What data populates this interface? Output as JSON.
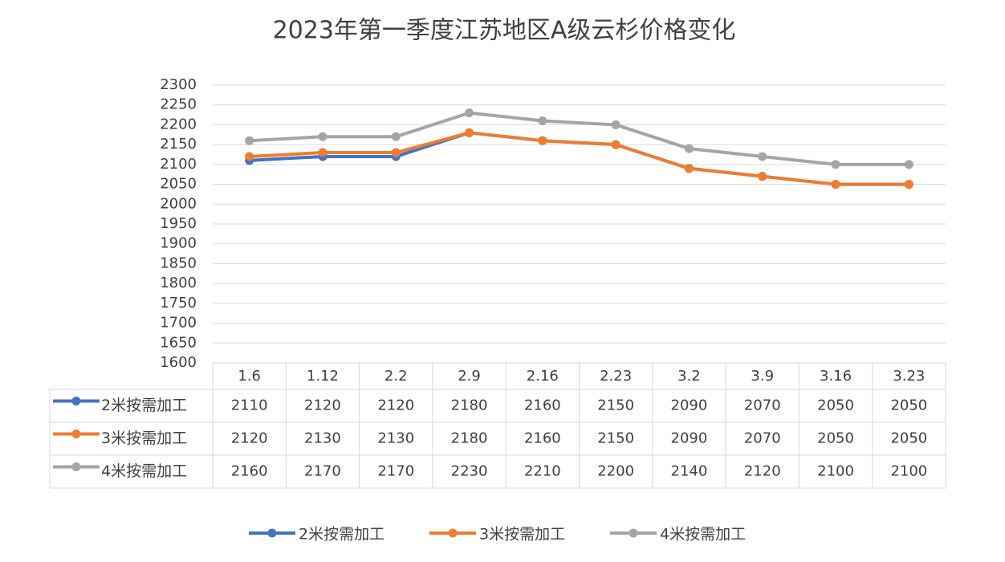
{
  "chart_data": {
    "type": "line",
    "title": "2023年第一季度江苏地区A级云杉价格变化",
    "categories": [
      "1.6",
      "1.12",
      "2.2",
      "2.9",
      "2.16",
      "2.23",
      "3.2",
      "3.9",
      "3.16",
      "3.23"
    ],
    "series": [
      {
        "name": "2米按需加工",
        "color": "#4472c4",
        "values": [
          2110,
          2120,
          2120,
          2180,
          2160,
          2150,
          2090,
          2070,
          2050,
          2050
        ]
      },
      {
        "name": "3米按需加工",
        "color": "#ed7d31",
        "values": [
          2120,
          2130,
          2130,
          2180,
          2160,
          2150,
          2090,
          2070,
          2050,
          2050
        ]
      },
      {
        "name": "4米按需加工",
        "color": "#a5a5a5",
        "values": [
          2160,
          2170,
          2170,
          2230,
          2210,
          2200,
          2140,
          2120,
          2100,
          2100
        ]
      }
    ],
    "ylim": [
      1600,
      2300
    ],
    "yticks": [
      1600,
      1650,
      1700,
      1750,
      1800,
      1850,
      1900,
      1950,
      2000,
      2050,
      2100,
      2150,
      2200,
      2250,
      2300
    ],
    "grid": true,
    "data_table": true,
    "legend": "bottom"
  }
}
